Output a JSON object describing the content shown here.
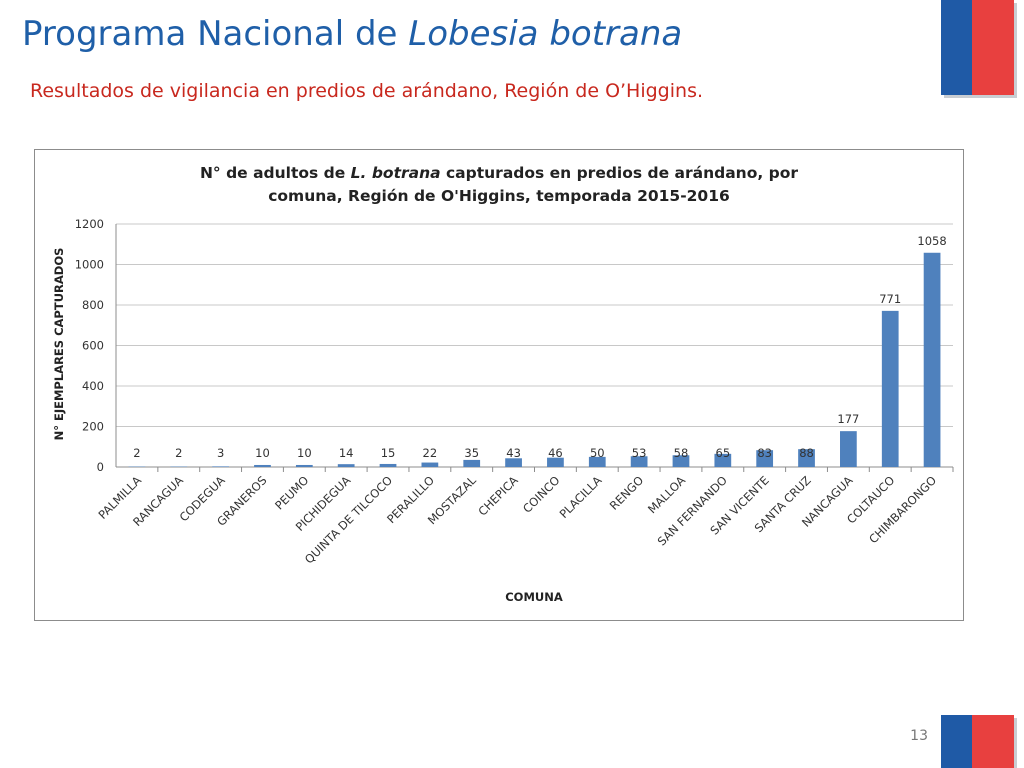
{
  "slide": {
    "title_prefix": "Programa Nacional de ",
    "title_italic": "Lobesia botrana",
    "subtitle": "Resultados de vigilancia en predios de arándano, Región de O’Higgins.",
    "page_number": "13",
    "colors": {
      "title": "#1f5fa8",
      "subtitle": "#c8281e",
      "flag_blue": "#1f5aa6",
      "flag_red": "#e8403f",
      "bar": "#4f81bd"
    }
  },
  "chart_data": {
    "type": "bar",
    "title_line1_prefix": "N° de adultos de ",
    "title_line1_italic": "L. botrana",
    "title_line1_suffix": " capturados en predios de arándano, por",
    "title_line2": "comuna, Región de O'Higgins, temporada 2015-2016",
    "xlabel": "COMUNA",
    "ylabel": "N° EJEMPLARES CAPTURADOS",
    "ylim": [
      0,
      1200
    ],
    "yticks": [
      "0",
      "200",
      "400",
      "600",
      "800",
      "1000",
      "1200"
    ],
    "grid": true,
    "categories": [
      "PALMILLA",
      "RANCAGUA",
      "CODEGUA",
      "GRANEROS",
      "PEUMO",
      "PICHIDEGUA",
      "QUINTA DE TILCOCO",
      "PERALILLO",
      "MOSTAZAL",
      "CHEPICA",
      "COINCO",
      "PLACILLA",
      "RENGO",
      "MALLOA",
      "SAN FERNANDO",
      "SAN VICENTE",
      "SANTA CRUZ",
      "NANCAGUA",
      "COLTAUCO",
      "CHIMBARONGO"
    ],
    "values": [
      2,
      2,
      3,
      10,
      10,
      14,
      15,
      22,
      35,
      43,
      46,
      50,
      53,
      58,
      65,
      83,
      88,
      177,
      771,
      1058
    ],
    "data_labels": [
      "2",
      "2",
      "3",
      "10",
      "10",
      "14",
      "15",
      "22",
      "35",
      "43",
      "46",
      "50",
      "53",
      "58",
      "65",
      "83",
      "88",
      "177",
      "771",
      "1058"
    ]
  }
}
